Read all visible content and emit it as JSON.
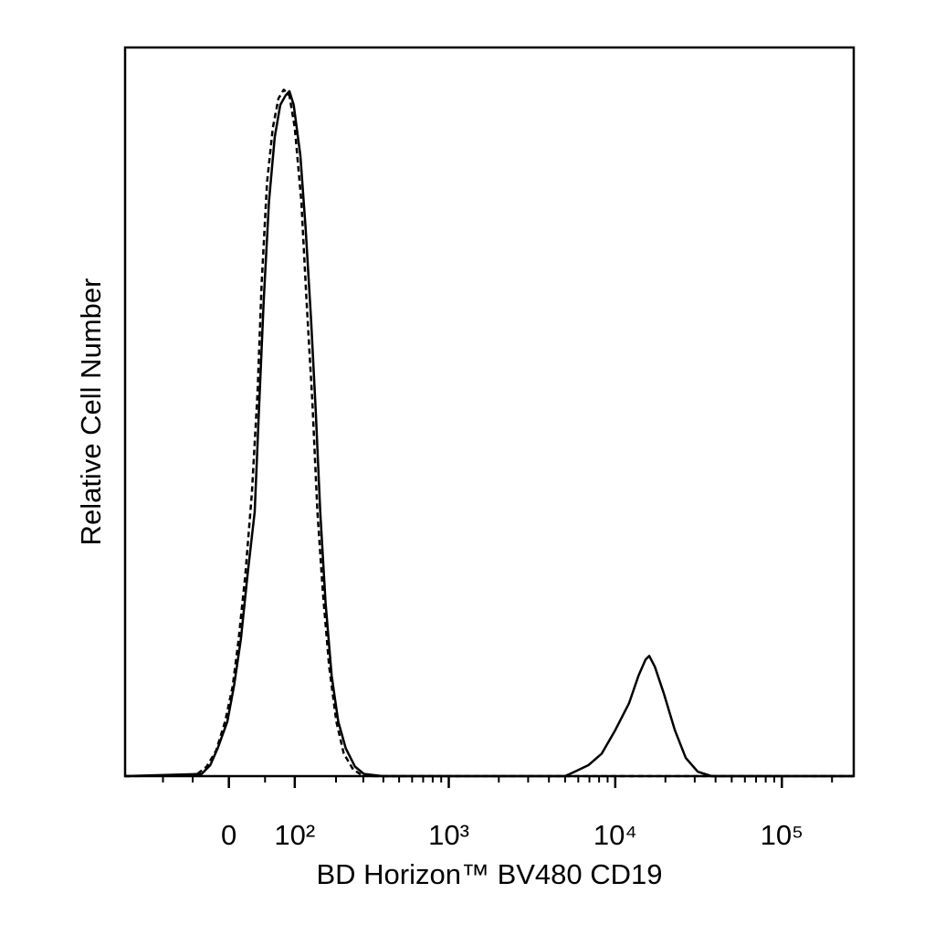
{
  "chart_data": {
    "type": "line",
    "xlabel": "BD Horizon™ BV480 CD19",
    "ylabel": "Relative Cell Number",
    "xscale": "biexponential",
    "xlim": [
      -190,
      270000
    ],
    "ylim": [
      0,
      100
    ],
    "xticks": [
      0,
      {
        "value": 100,
        "label": "10²"
      },
      {
        "value": 1000,
        "label": "10³"
      },
      {
        "value": 10000,
        "label": "10⁴"
      },
      {
        "value": 100000,
        "label": "10⁵"
      }
    ],
    "xminorticks": [
      -100,
      -50,
      50,
      200,
      300,
      400,
      500,
      600,
      700,
      800,
      900,
      2000,
      3000,
      4000,
      5000,
      6000,
      7000,
      8000,
      9000,
      20000,
      30000,
      40000,
      50000,
      60000,
      70000,
      80000,
      90000,
      200000
    ],
    "series": [
      {
        "color": "#000000",
        "dashed": false,
        "x": [
          -190,
          -37,
          -25,
          -15,
          -2,
          7,
          16,
          25,
          35,
          41,
          48,
          56,
          65,
          74,
          83,
          90,
          98,
          111,
          122,
          134,
          145,
          156,
          170,
          187,
          207,
          232,
          266,
          303,
          395,
          5000,
          5700,
          6900,
          8300,
          10000,
          12100,
          13800,
          15200,
          16000,
          17300,
          19600,
          22800,
          26500,
          31300,
          37800,
          270000
        ],
        "values": [
          0,
          0.3,
          1.5,
          3.8,
          7.5,
          12.5,
          18.8,
          27.6,
          36.3,
          50.1,
          65.2,
          78.9,
          87.7,
          92.1,
          93.4,
          94.0,
          92.1,
          85.2,
          75.2,
          62.7,
          50.1,
          36.3,
          23.8,
          13.8,
          7.5,
          3.8,
          1.3,
          0.3,
          0,
          0,
          0.6,
          1.5,
          3.1,
          6.3,
          10.0,
          13.8,
          16.0,
          16.5,
          15.0,
          11.3,
          6.3,
          2.5,
          0.6,
          0,
          0
        ]
      },
      {
        "color": "#000000",
        "dashed": true,
        "x": [
          -190,
          -46,
          -30,
          -17,
          -5,
          5,
          13,
          22,
          31,
          39,
          45,
          53,
          62,
          71,
          80,
          90,
          100,
          113,
          124,
          137,
          149,
          163,
          180,
          201,
          225,
          259,
          296,
          347,
          270000
        ],
        "values": [
          0,
          0.1,
          1.3,
          3.5,
          7.5,
          12.3,
          18.8,
          27.6,
          38.8,
          52.6,
          67.7,
          81.5,
          89.0,
          93.0,
          94.2,
          93.4,
          89.0,
          78.9,
          65.2,
          51.4,
          36.3,
          25.1,
          15.0,
          7.5,
          3.1,
          0.9,
          0.1,
          0,
          0
        ]
      }
    ]
  }
}
